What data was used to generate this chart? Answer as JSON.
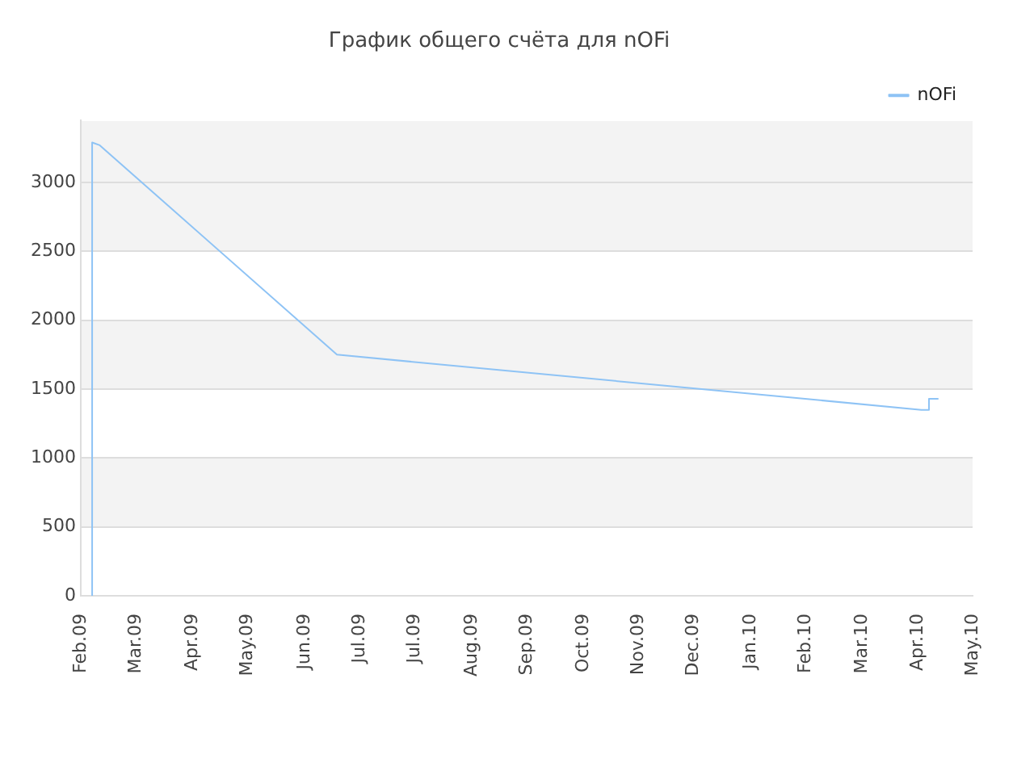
{
  "chart_data": {
    "type": "line",
    "title": "График общего счёта для nOFi",
    "x": [
      "2009-02-10",
      "2009-02-10",
      "2009-02-14",
      "2009-06-19",
      "2009-06-19",
      "2010-04-23",
      "2010-04-27",
      "2010-04-27",
      "2010-05-02"
    ],
    "series": [
      {
        "name": "nOFi",
        "color": "#8ec3f5",
        "values": [
          0,
          3290,
          3270,
          1750,
          1750,
          1350,
          1350,
          1430,
          1430
        ]
      }
    ],
    "xlim": [
      "2009-02-04",
      "2010-05-20"
    ],
    "xticks": [
      {
        "value": "2009-02-04",
        "label": "Feb.09"
      },
      {
        "value": "2009-03-05",
        "label": "Mar.09"
      },
      {
        "value": "2009-04-04",
        "label": "Apr.09"
      },
      {
        "value": "2009-05-03",
        "label": "May.09"
      },
      {
        "value": "2009-06-02",
        "label": "Jun.09"
      },
      {
        "value": "2009-07-01",
        "label": "Jul.09"
      },
      {
        "value": "2009-07-30",
        "label": "Jul.09"
      },
      {
        "value": "2009-08-29",
        "label": "Aug.09"
      },
      {
        "value": "2009-09-27",
        "label": "Sep.09"
      },
      {
        "value": "2009-10-27",
        "label": "Oct.09"
      },
      {
        "value": "2009-11-25",
        "label": "Nov.09"
      },
      {
        "value": "2009-12-24",
        "label": "Dec.09"
      },
      {
        "value": "2010-01-23",
        "label": "Jan.10"
      },
      {
        "value": "2010-02-21",
        "label": "Feb.10"
      },
      {
        "value": "2010-03-23",
        "label": "Mar.10"
      },
      {
        "value": "2010-04-21",
        "label": "Apr.10"
      },
      {
        "value": "2010-05-20",
        "label": "May.10"
      }
    ],
    "ylim": [
      0,
      3450
    ],
    "yticks": [
      0,
      500,
      1000,
      1500,
      2000,
      2500,
      3000
    ],
    "grid": "y",
    "legend": "top right",
    "marker": "none",
    "line_style": "solid"
  }
}
